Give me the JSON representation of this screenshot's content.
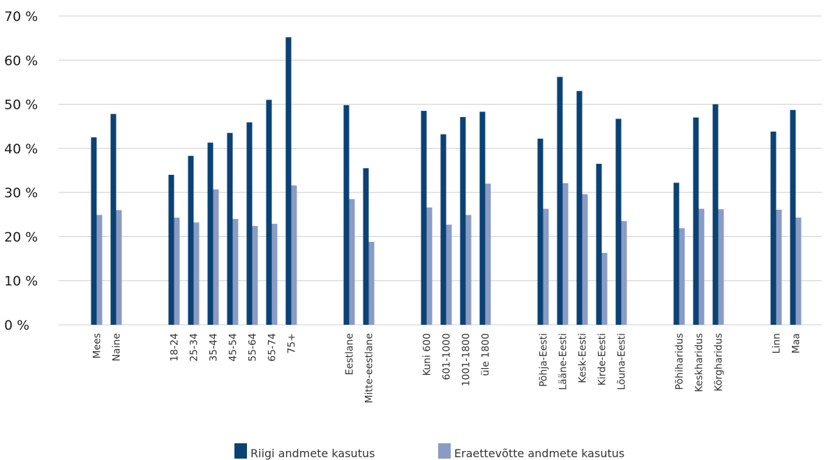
{
  "chart_data": {
    "type": "bar",
    "categories": [
      "Mees",
      "Naine",
      "18-24",
      "25-34",
      "35-44",
      "45-54",
      "55-64",
      "65-74",
      "75+",
      "Eestlane",
      "Mitte-eestlane",
      "Kuni 600",
      "601-1000",
      "1001-1800",
      "üle 1800",
      "Põhja-Eesti",
      "Lääne-Eesti",
      "Kesk-Eesti",
      "Kirde-Eesti",
      "Lõuna-Eesti",
      "Põhiharidus",
      "Keskharidus",
      "Kõrgharidus",
      "Linn",
      "Maa"
    ],
    "groups": [
      2,
      7,
      2,
      4,
      5,
      3,
      2
    ],
    "series": [
      {
        "name": "Riigi andmete kasutus",
        "color": "#0a4275",
        "values": [
          42.5,
          47.8,
          34.0,
          38.3,
          41.3,
          43.5,
          45.9,
          51.0,
          65.2,
          49.8,
          35.5,
          48.5,
          43.2,
          47.1,
          48.3,
          42.2,
          56.2,
          53.0,
          36.5,
          46.7,
          32.2,
          47.0,
          50.0,
          43.8,
          48.7
        ]
      },
      {
        "name": "Eraettevõtte andmete kasutus",
        "color": "#8a9cc4",
        "values": [
          24.9,
          26.0,
          24.3,
          23.2,
          30.7,
          24.0,
          22.4,
          22.9,
          31.6,
          28.5,
          18.8,
          26.6,
          22.7,
          24.9,
          32.0,
          26.3,
          32.1,
          29.6,
          16.3,
          23.5,
          21.9,
          26.3,
          26.2,
          26.1,
          24.3
        ]
      }
    ],
    "yticks": [
      "0 %",
      "10 %",
      "20 %",
      "30 %",
      "40 %",
      "50 %",
      "60 %",
      "70 %"
    ],
    "ylim": [
      0,
      70
    ],
    "grid": true,
    "legend_position": "bottom"
  }
}
